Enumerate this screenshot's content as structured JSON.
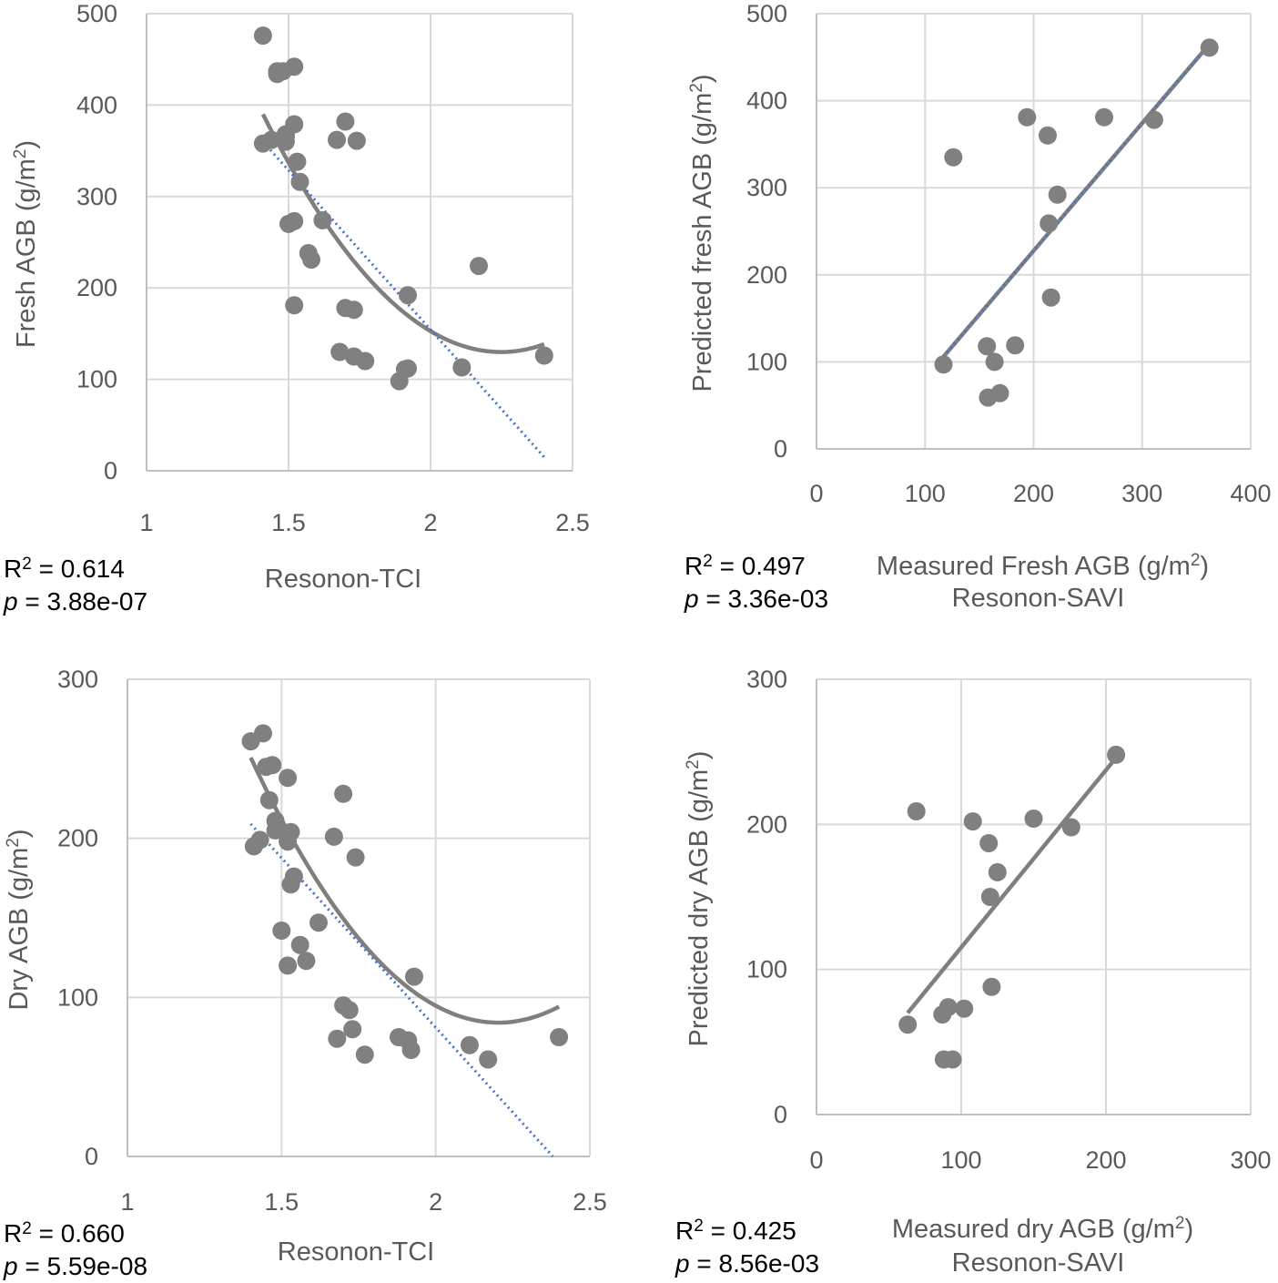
{
  "chart_data": [
    {
      "type": "scatter",
      "panel": "top-left",
      "xlabel": "Resonon-TCI",
      "ylabel": "Fresh AGB (g/m²)",
      "xlim": [
        1,
        2.5
      ],
      "ylim": [
        0,
        500
      ],
      "xticks": [
        1,
        1.5,
        2,
        2.5
      ],
      "yticks": [
        0,
        100,
        200,
        300,
        400,
        500
      ],
      "tick_labels_x": [
        "1",
        "1.5",
        "2",
        "2.5"
      ],
      "tick_labels_y": [
        "0",
        "100",
        "200",
        "300",
        "400",
        "500"
      ],
      "grid": true,
      "points": [
        [
          1.41,
          476
        ],
        [
          1.41,
          358
        ],
        [
          1.44,
          362
        ],
        [
          1.46,
          434
        ],
        [
          1.46,
          437
        ],
        [
          1.48,
          437
        ],
        [
          1.49,
          360
        ],
        [
          1.49,
          365
        ],
        [
          1.49,
          368
        ],
        [
          1.52,
          442
        ],
        [
          1.52,
          379
        ],
        [
          1.53,
          338
        ],
        [
          1.54,
          316
        ],
        [
          1.5,
          270
        ],
        [
          1.52,
          273
        ],
        [
          1.52,
          181
        ],
        [
          1.57,
          238
        ],
        [
          1.58,
          231
        ],
        [
          1.62,
          274
        ],
        [
          1.67,
          362
        ],
        [
          1.7,
          382
        ],
        [
          1.74,
          361
        ],
        [
          1.7,
          178
        ],
        [
          1.73,
          176
        ],
        [
          1.68,
          130
        ],
        [
          1.73,
          125
        ],
        [
          1.77,
          120
        ],
        [
          1.89,
          98
        ],
        [
          1.91,
          111
        ],
        [
          1.92,
          112
        ],
        [
          1.92,
          192
        ],
        [
          2.11,
          113
        ],
        [
          2.17,
          224
        ],
        [
          2.4,
          126
        ]
      ],
      "fit_linear": {
        "x": [
          1.41,
          2.4
        ],
        "y": [
          360,
          15
        ],
        "style": "dotted"
      },
      "fit_poly": {
        "coef": [
          2000.98,
          -1664.55,
          370.2
        ],
        "x_range": [
          1.41,
          2.4
        ],
        "style": "solid"
      },
      "stats": {
        "r2_label": "R",
        "r2_value": "= 0.614",
        "p_label": "p",
        "p_value": "= 3.88e-07"
      }
    },
    {
      "type": "scatter",
      "panel": "top-right",
      "xlabel": "Measured Fresh AGB (g/m²)",
      "subtitle": "Resonon-SAVI",
      "ylabel": "Predicted fresh AGB (g/m²)",
      "xlim": [
        0,
        400
      ],
      "ylim": [
        0,
        500
      ],
      "xticks": [
        0,
        100,
        200,
        300,
        400
      ],
      "yticks": [
        0,
        100,
        200,
        300,
        400,
        500
      ],
      "tick_labels_x": [
        "0",
        "100",
        "200",
        "300",
        "400"
      ],
      "tick_labels_y": [
        "0",
        "100",
        "200",
        "300",
        "400",
        "500"
      ],
      "grid": true,
      "points": [
        [
          117,
          97
        ],
        [
          126,
          335
        ],
        [
          157,
          118
        ],
        [
          158,
          59
        ],
        [
          164,
          100
        ],
        [
          169,
          64
        ],
        [
          183,
          119
        ],
        [
          194,
          381
        ],
        [
          213,
          360
        ],
        [
          214,
          259
        ],
        [
          216,
          174
        ],
        [
          222,
          292
        ],
        [
          265,
          381
        ],
        [
          311,
          378
        ],
        [
          362,
          461
        ]
      ],
      "fit_linear": {
        "x": [
          117,
          362
        ],
        "y": [
          106,
          465
        ],
        "style": "solid+dotted"
      },
      "stats": {
        "r2_label": "R",
        "r2_value": "= 0.497",
        "p_label": "p",
        "p_value": "= 3.36e-03"
      }
    },
    {
      "type": "scatter",
      "panel": "bottom-left",
      "xlabel": "Resonon-TCI",
      "ylabel": "Dry AGB (g/m²)",
      "xlim": [
        1,
        2.5
      ],
      "ylim": [
        0,
        300
      ],
      "xticks": [
        1,
        1.5,
        2,
        2.5
      ],
      "yticks": [
        0,
        100,
        200,
        300
      ],
      "tick_labels_x": [
        "1",
        "1.5",
        "2",
        "2.5"
      ],
      "tick_labels_y": [
        "0",
        "100",
        "200",
        "300"
      ],
      "grid": true,
      "points": [
        [
          1.4,
          261
        ],
        [
          1.44,
          266
        ],
        [
          1.45,
          245
        ],
        [
          1.47,
          246
        ],
        [
          1.52,
          238
        ],
        [
          1.46,
          224
        ],
        [
          1.48,
          211
        ],
        [
          1.48,
          205
        ],
        [
          1.53,
          204
        ],
        [
          1.52,
          198
        ],
        [
          1.41,
          195
        ],
        [
          1.43,
          199
        ],
        [
          1.54,
          176
        ],
        [
          1.53,
          171
        ],
        [
          1.5,
          142
        ],
        [
          1.56,
          133
        ],
        [
          1.62,
          147
        ],
        [
          1.52,
          120
        ],
        [
          1.58,
          123
        ],
        [
          1.67,
          201
        ],
        [
          1.7,
          228
        ],
        [
          1.74,
          188
        ],
        [
          1.7,
          95
        ],
        [
          1.72,
          92
        ],
        [
          1.73,
          80
        ],
        [
          1.68,
          74
        ],
        [
          1.77,
          64
        ],
        [
          1.88,
          75
        ],
        [
          1.91,
          73
        ],
        [
          1.92,
          67
        ],
        [
          1.93,
          113
        ],
        [
          2.11,
          70
        ],
        [
          2.17,
          61
        ],
        [
          2.4,
          75
        ]
      ],
      "fit_linear": {
        "x": [
          1.4,
          2.38
        ],
        "y": [
          209,
          0
        ],
        "style": "dotted"
      },
      "fit_poly": {
        "coef": [
          1338.84,
          -1139.25,
          258.6
        ],
        "x_range": [
          1.4,
          2.4
        ],
        "style": "solid"
      },
      "stats": {
        "r2_label": "R",
        "r2_value": "= 0.660",
        "p_label": "p",
        "p_value": "= 5.59e-08"
      }
    },
    {
      "type": "scatter",
      "panel": "bottom-right",
      "xlabel": "Measured dry AGB (g/m²)",
      "subtitle": "Resonon-SAVI",
      "ylabel": "Predicted dry AGB (g/m²)",
      "xlim": [
        0,
        300
      ],
      "ylim": [
        0,
        300
      ],
      "xticks": [
        0,
        100,
        200,
        300
      ],
      "yticks": [
        0,
        100,
        200,
        300
      ],
      "tick_labels_x": [
        "0",
        "100",
        "200",
        "300"
      ],
      "tick_labels_y": [
        "0",
        "100",
        "200",
        "300"
      ],
      "grid": true,
      "points": [
        [
          63,
          62
        ],
        [
          69,
          209
        ],
        [
          87,
          69
        ],
        [
          88,
          38
        ],
        [
          91,
          74
        ],
        [
          94,
          38
        ],
        [
          102,
          73
        ],
        [
          108,
          202
        ],
        [
          119,
          187
        ],
        [
          120,
          150
        ],
        [
          121,
          88
        ],
        [
          125,
          167
        ],
        [
          150,
          204
        ],
        [
          176,
          198
        ],
        [
          207,
          248
        ]
      ],
      "fit_linear": {
        "x": [
          63,
          207
        ],
        "y": [
          70,
          246
        ],
        "style": "solid"
      },
      "stats": {
        "r2_label": "R",
        "r2_value": "= 0.425",
        "p_label": "p",
        "p_value": "= 8.56e-03"
      }
    }
  ],
  "labels": {
    "sup2": "2",
    "p1_r": "R",
    "p1_r_val": "= 0.614",
    "p1_p": "p",
    "p1_p_val": "= 3.88e-07",
    "p2_r": "R",
    "p2_r_val": "= 0.497",
    "p2_p": "p",
    "p2_p_val": "= 3.36e-03",
    "p3_r": "R",
    "p3_r_val": "= 0.660",
    "p3_p": "p",
    "p3_p_val": "= 5.59e-08",
    "p4_r": "R",
    "p4_r_val": "= 0.425",
    "p4_p": "p",
    "p4_p_val": "= 8.56e-03"
  },
  "colors": {
    "point": "#808080",
    "fit_solid": "#7f7f7f",
    "fit_dotted": "#4472c4",
    "grid": "#d9d9d9",
    "axis": "#bfbfbf",
    "tick_text": "#595959"
  }
}
